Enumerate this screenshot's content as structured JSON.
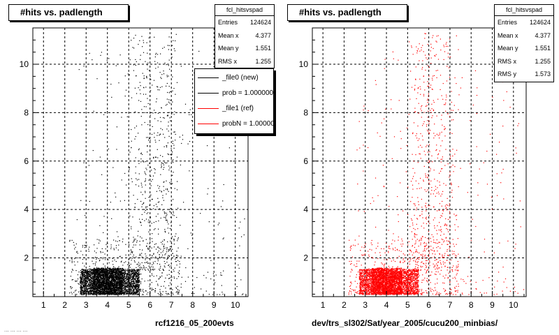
{
  "footer_text": "... ... ... ...",
  "chart_data": [
    {
      "type": "scatter",
      "title": "#hits vs. padlength",
      "xlabel": "rcf1216_05_200evts",
      "ylabel": "",
      "xlim": [
        0.5,
        10.6
      ],
      "ylim": [
        0.4,
        11.5
      ],
      "xticks": [
        1,
        2,
        3,
        4,
        5,
        6,
        7,
        8,
        9,
        10
      ],
      "yticks": [
        2,
        4,
        6,
        8,
        10
      ],
      "grid": true,
      "point_color": "#000000",
      "stats": {
        "title": "fcl_hitsvspad",
        "rows": [
          {
            "label": "Entries",
            "value": "124624"
          },
          {
            "label": "Mean x",
            "value": "4.377"
          },
          {
            "label": "Mean y",
            "value": "1.551"
          },
          {
            "label": "RMS x",
            "value": "1.255"
          }
        ]
      },
      "legend": {
        "placement": "top-right",
        "entries": [
          {
            "label": "_file0 (new)",
            "color": "#000000"
          },
          {
            "label": "prob = 1.000000",
            "color": "#000000"
          },
          {
            "label": "_file1 (ref)",
            "color": "#ff0000"
          },
          {
            "label": "probN = 1.000000",
            "color": "#ff0000"
          }
        ]
      }
    },
    {
      "type": "scatter",
      "title": "#hits vs. padlength",
      "xlabel": "dev/trs_sl302/Sat/year_2005/cucu200_minbias/",
      "ylabel": "",
      "xlim": [
        0.5,
        10.6
      ],
      "ylim": [
        0.4,
        11.5
      ],
      "xticks": [
        1,
        2,
        3,
        4,
        5,
        6,
        7,
        8,
        9,
        10
      ],
      "yticks": [
        2,
        4,
        6,
        8,
        10
      ],
      "grid": true,
      "point_color": "#ff0000",
      "stats": {
        "title": "fcl_hitsvspad",
        "rows": [
          {
            "label": "Entries",
            "value": "124624"
          },
          {
            "label": "Mean x",
            "value": "4.377"
          },
          {
            "label": "Mean y",
            "value": "1.551"
          },
          {
            "label": "RMS x",
            "value": "1.255"
          },
          {
            "label": "RMS y",
            "value": "1.573"
          }
        ]
      }
    }
  ]
}
